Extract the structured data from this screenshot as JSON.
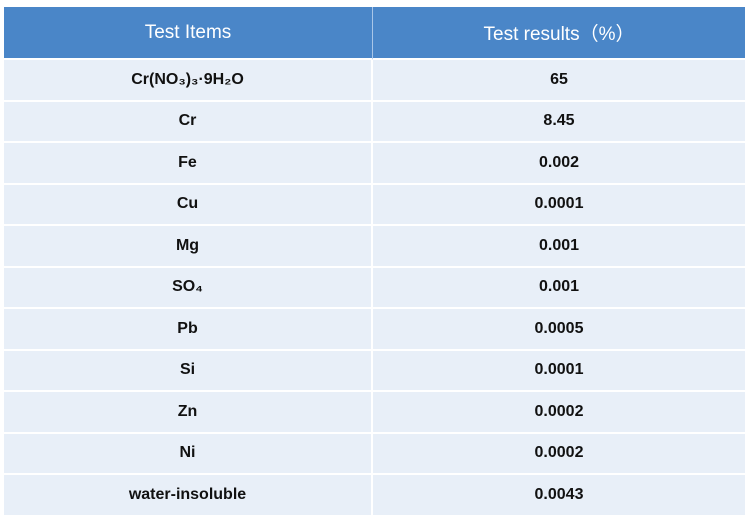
{
  "table": {
    "headers": [
      "Test Items",
      "Test results（%）"
    ],
    "rows": [
      {
        "item": "Cr(NO₃)₃·9H₂O",
        "result": "65"
      },
      {
        "item": "Cr",
        "result": "8.45"
      },
      {
        "item": "Fe",
        "result": "0.002"
      },
      {
        "item": "Cu",
        "result": "0.0001"
      },
      {
        "item": "Mg",
        "result": "0.001"
      },
      {
        "item": "SO₄",
        "result": "0.001"
      },
      {
        "item": "Pb",
        "result": "0.0005"
      },
      {
        "item": "Si",
        "result": "0.0001"
      },
      {
        "item": "Zn",
        "result": "0.0002"
      },
      {
        "item": "Ni",
        "result": "0.0002"
      },
      {
        "item": "water-insoluble",
        "result": "0.0043"
      }
    ]
  },
  "colors": {
    "header_bg": "#4a86c8",
    "header_text": "#ffffff",
    "row_bg": "#e8eff8",
    "row_text": "#111111"
  }
}
